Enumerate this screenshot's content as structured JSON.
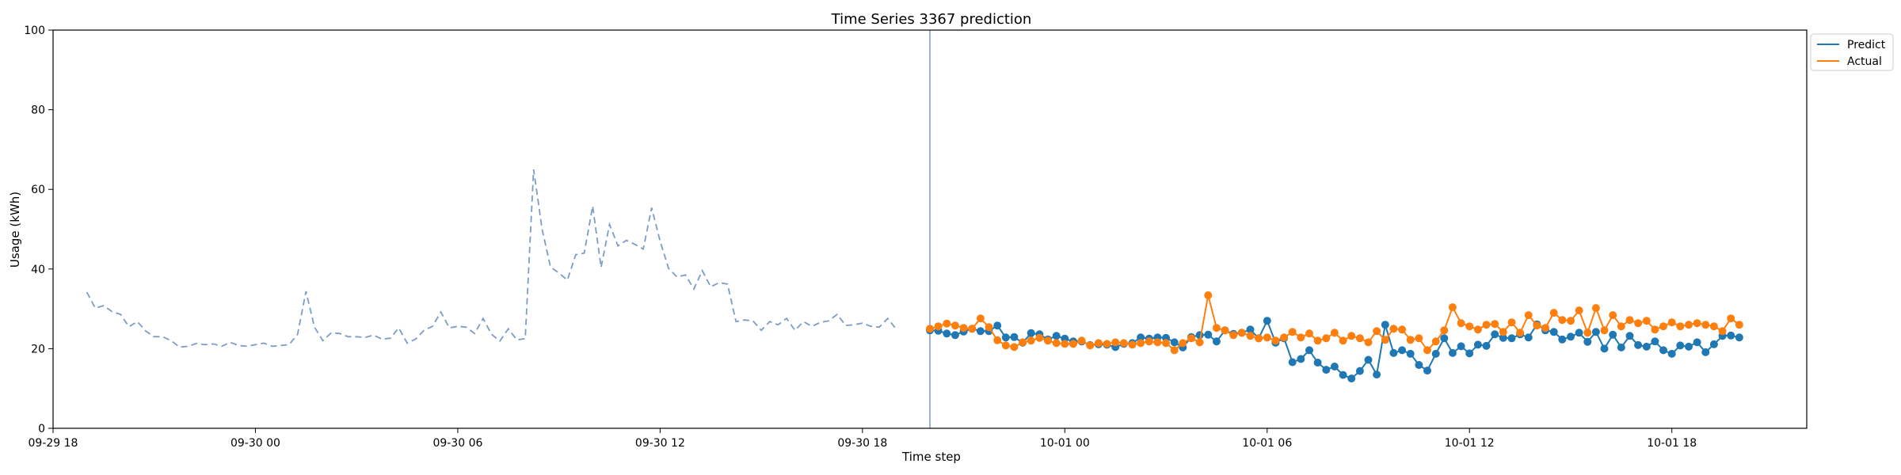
{
  "chart_data": {
    "type": "line",
    "title": "Time Series 3367 prediction",
    "xlabel": "Time step",
    "ylabel": "Usage (kWh)",
    "ylim": [
      0,
      100
    ],
    "yticks": [
      "0",
      "20",
      "40",
      "60",
      "80",
      "100"
    ],
    "xlim": [
      "09-29 18:00",
      "10-01 22:00"
    ],
    "xticks": [
      {
        "label": "09-29 18",
        "t": "09-29 18:00"
      },
      {
        "label": "09-30 00",
        "t": "09-30 00:00"
      },
      {
        "label": "09-30 06",
        "t": "09-30 06:00"
      },
      {
        "label": "09-30 12",
        "t": "09-30 12:00"
      },
      {
        "label": "09-30 18",
        "t": "09-30 18:00"
      },
      {
        "label": "10-01 00",
        "t": "10-01 00:00"
      },
      {
        "label": "10-01 06",
        "t": "10-01 06:00"
      },
      {
        "label": "10-01 12",
        "t": "10-01 12:00"
      },
      {
        "label": "10-01 18",
        "t": "10-01 18:00"
      }
    ],
    "grid": false,
    "legend_position": "top-right, outside plot",
    "forecast_start": "09-30 20:00",
    "interval_minutes": 15,
    "history": {
      "start": "09-29 19:00",
      "color": "#7b9cc7",
      "style": "dashed",
      "values": [
        34.2,
        30.2,
        30.8,
        29.3,
        28.6,
        25.5,
        26.8,
        24.4,
        23.0,
        23.0,
        22.0,
        20.4,
        20.6,
        21.3,
        21.0,
        21.2,
        20.6,
        21.6,
        20.8,
        20.6,
        21.0,
        21.4,
        20.6,
        20.8,
        21.0,
        23.6,
        34.4,
        25.4,
        22.0,
        24.0,
        23.8,
        23.0,
        23.0,
        22.8,
        23.4,
        22.4,
        22.6,
        25.2,
        21.4,
        22.4,
        24.6,
        25.6,
        29.2,
        25.2,
        25.6,
        25.4,
        23.8,
        27.6,
        23.6,
        21.9,
        25.0,
        22.2,
        22.5,
        65.0,
        50.0,
        40.5,
        39.0,
        37.2,
        43.6,
        44.0,
        55.8,
        40.4,
        51.2,
        45.8,
        47.2,
        46.2,
        45.0,
        55.4,
        47.0,
        40.2,
        38.0,
        38.5,
        35.0,
        39.6,
        35.5,
        36.6,
        36.2,
        26.8,
        27.2,
        27.0,
        24.6,
        26.8,
        26.0,
        27.6,
        24.6,
        26.8,
        25.6,
        26.6,
        27.0,
        28.6,
        25.8,
        26.0,
        26.4,
        25.6,
        25.4,
        27.6,
        24.9
      ]
    },
    "series": [
      {
        "name": "Predict",
        "color": "#1f77b4",
        "start": "09-30 20:00",
        "values": [
          24.6,
          24.5,
          23.8,
          23.4,
          24.3,
          25.0,
          24.4,
          24.4,
          25.8,
          22.8,
          22.9,
          21.5,
          23.9,
          23.6,
          22.3,
          23.2,
          22.5,
          21.8,
          21.8,
          20.9,
          21.1,
          21.0,
          20.4,
          21.2,
          21.4,
          22.8,
          22.5,
          22.8,
          22.7,
          21.6,
          20.3,
          22.9,
          23.4,
          23.5,
          21.8,
          24.6,
          23.7,
          24.0,
          24.8,
          22.6,
          27.0,
          21.5,
          22.6,
          16.6,
          17.4,
          19.6,
          16.5,
          14.7,
          15.5,
          13.4,
          12.5,
          14.4,
          17.2,
          13.5,
          26.0,
          18.9,
          19.6,
          18.7,
          15.9,
          14.5,
          18.7,
          22.6,
          18.9,
          20.6,
          18.8,
          21.0,
          20.7,
          23.6,
          22.7,
          22.6,
          23.6,
          22.8,
          26.1,
          24.6,
          24.2,
          22.3,
          23.0,
          24.0,
          21.7,
          24.2,
          20.0,
          23.5,
          20.3,
          23.2,
          20.9,
          20.5,
          21.8,
          19.6,
          18.7,
          20.8,
          20.5,
          21.6,
          19.1,
          21.1,
          23.2,
          23.3,
          22.8
        ]
      },
      {
        "name": "Actual",
        "color": "#ff7f0e",
        "start": "09-30 20:00",
        "values": [
          25.0,
          25.6,
          26.3,
          25.8,
          25.2,
          25.0,
          27.6,
          25.4,
          22.1,
          20.8,
          20.4,
          21.6,
          22.0,
          22.7,
          22.0,
          21.4,
          21.2,
          21.2,
          22.0,
          20.8,
          21.4,
          21.2,
          21.6,
          21.4,
          21.0,
          21.4,
          21.8,
          21.6,
          21.4,
          19.6,
          21.4,
          22.6,
          21.6,
          33.4,
          25.2,
          24.6,
          23.4,
          24.0,
          23.2,
          22.6,
          22.8,
          22.0,
          22.8,
          24.2,
          22.8,
          23.8,
          22.0,
          22.6,
          24.0,
          22.0,
          23.2,
          22.6,
          21.6,
          24.4,
          22.2,
          25.0,
          24.8,
          22.2,
          22.6,
          19.6,
          21.8,
          24.6,
          30.4,
          26.4,
          25.6,
          24.8,
          26.0,
          26.2,
          24.2,
          26.6,
          24.0,
          28.4,
          25.8,
          25.2,
          29.0,
          27.2,
          27.0,
          29.6,
          24.0,
          30.2,
          24.6,
          28.4,
          25.6,
          27.2,
          26.4,
          27.0,
          24.8,
          25.6,
          26.6,
          25.6,
          26.0,
          26.4,
          26.0,
          25.6,
          24.4,
          27.6,
          26.0
        ]
      }
    ]
  }
}
